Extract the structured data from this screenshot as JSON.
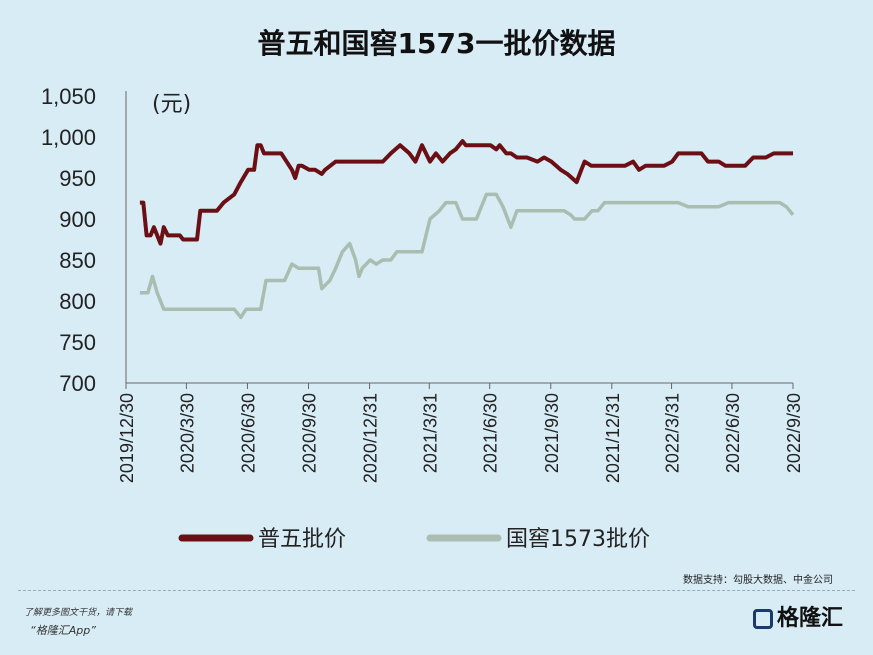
{
  "chart_data": {
    "type": "line",
    "title": "普五和国窖1573一批价数据",
    "unit_label": "(元)",
    "ylim": [
      700,
      1050
    ],
    "y_ticks": [
      700,
      750,
      800,
      850,
      900,
      950,
      1000,
      1050
    ],
    "y_tick_labels": [
      "700",
      "750",
      "800",
      "850",
      "900",
      "950",
      "1,000",
      "1,050"
    ],
    "x_range": [
      "2019-12-30",
      "2022-09-30"
    ],
    "x_ticks": [
      "2019/12/30",
      "2020/3/30",
      "2020/6/30",
      "2020/9/30",
      "2020/12/31",
      "2021/3/31",
      "2021/6/30",
      "2021/9/30",
      "2021/12/31",
      "2022/3/31",
      "2022/6/30",
      "2022/9/30"
    ],
    "series": [
      {
        "name": "普五批价",
        "color": "#6b0f14",
        "points": [
          [
            "2020-01-20",
            920
          ],
          [
            "2020-01-25",
            920
          ],
          [
            "2020-01-30",
            880
          ],
          [
            "2020-02-05",
            880
          ],
          [
            "2020-02-10",
            890
          ],
          [
            "2020-02-15",
            880
          ],
          [
            "2020-02-20",
            870
          ],
          [
            "2020-02-25",
            890
          ],
          [
            "2020-03-02",
            880
          ],
          [
            "2020-03-10",
            880
          ],
          [
            "2020-03-20",
            880
          ],
          [
            "2020-03-25",
            875
          ],
          [
            "2020-04-15",
            875
          ],
          [
            "2020-04-20",
            910
          ],
          [
            "2020-05-01",
            910
          ],
          [
            "2020-05-15",
            910
          ],
          [
            "2020-05-25",
            920
          ],
          [
            "2020-06-10",
            930
          ],
          [
            "2020-06-20",
            945
          ],
          [
            "2020-07-01",
            960
          ],
          [
            "2020-07-10",
            960
          ],
          [
            "2020-07-15",
            990
          ],
          [
            "2020-07-20",
            990
          ],
          [
            "2020-07-25",
            980
          ],
          [
            "2020-08-05",
            980
          ],
          [
            "2020-08-20",
            980
          ],
          [
            "2020-09-05",
            960
          ],
          [
            "2020-09-10",
            950
          ],
          [
            "2020-09-15",
            965
          ],
          [
            "2020-09-20",
            965
          ],
          [
            "2020-10-01",
            960
          ],
          [
            "2020-10-10",
            960
          ],
          [
            "2020-10-20",
            955
          ],
          [
            "2020-10-25",
            960
          ],
          [
            "2020-11-10",
            970
          ],
          [
            "2020-11-20",
            970
          ],
          [
            "2020-12-10",
            970
          ],
          [
            "2020-12-25",
            970
          ],
          [
            "2021-01-10",
            970
          ],
          [
            "2021-01-20",
            970
          ],
          [
            "2021-02-01",
            980
          ],
          [
            "2021-02-15",
            990
          ],
          [
            "2021-03-01",
            980
          ],
          [
            "2021-03-10",
            970
          ],
          [
            "2021-03-20",
            990
          ],
          [
            "2021-04-01",
            970
          ],
          [
            "2021-04-10",
            980
          ],
          [
            "2021-04-20",
            970
          ],
          [
            "2021-05-01",
            980
          ],
          [
            "2021-05-10",
            985
          ],
          [
            "2021-05-20",
            995
          ],
          [
            "2021-05-25",
            990
          ],
          [
            "2021-06-10",
            990
          ],
          [
            "2021-07-01",
            990
          ],
          [
            "2021-07-10",
            985
          ],
          [
            "2021-07-15",
            990
          ],
          [
            "2021-07-25",
            980
          ],
          [
            "2021-08-01",
            980
          ],
          [
            "2021-08-10",
            975
          ],
          [
            "2021-08-25",
            975
          ],
          [
            "2021-09-10",
            970
          ],
          [
            "2021-09-20",
            975
          ],
          [
            "2021-10-01",
            970
          ],
          [
            "2021-10-15",
            960
          ],
          [
            "2021-10-25",
            955
          ],
          [
            "2021-11-01",
            950
          ],
          [
            "2021-11-08",
            945
          ],
          [
            "2021-11-15",
            960
          ],
          [
            "2021-11-20",
            970
          ],
          [
            "2021-11-30",
            965
          ],
          [
            "2021-12-10",
            965
          ],
          [
            "2021-12-31",
            965
          ],
          [
            "2022-01-20",
            965
          ],
          [
            "2022-02-01",
            970
          ],
          [
            "2022-02-10",
            960
          ],
          [
            "2022-02-20",
            965
          ],
          [
            "2022-03-10",
            965
          ],
          [
            "2022-03-20",
            965
          ],
          [
            "2022-04-01",
            970
          ],
          [
            "2022-04-10",
            980
          ],
          [
            "2022-05-01",
            980
          ],
          [
            "2022-05-15",
            980
          ],
          [
            "2022-05-25",
            970
          ],
          [
            "2022-06-10",
            970
          ],
          [
            "2022-06-20",
            965
          ],
          [
            "2022-07-10",
            965
          ],
          [
            "2022-07-20",
            965
          ],
          [
            "2022-08-01",
            975
          ],
          [
            "2022-08-20",
            975
          ],
          [
            "2022-09-01",
            980
          ],
          [
            "2022-09-30",
            980
          ]
        ]
      },
      {
        "name": "国窖1573批价",
        "color": "#a9bdb0",
        "points": [
          [
            "2020-01-20",
            810
          ],
          [
            "2020-02-01",
            810
          ],
          [
            "2020-02-08",
            830
          ],
          [
            "2020-02-15",
            810
          ],
          [
            "2020-02-25",
            790
          ],
          [
            "2020-03-10",
            790
          ],
          [
            "2020-04-10",
            790
          ],
          [
            "2020-05-01",
            790
          ],
          [
            "2020-05-25",
            790
          ],
          [
            "2020-06-10",
            790
          ],
          [
            "2020-06-20",
            780
          ],
          [
            "2020-06-28",
            790
          ],
          [
            "2020-07-10",
            790
          ],
          [
            "2020-07-20",
            790
          ],
          [
            "2020-07-28",
            825
          ],
          [
            "2020-08-10",
            825
          ],
          [
            "2020-08-25",
            825
          ],
          [
            "2020-09-05",
            845
          ],
          [
            "2020-09-15",
            840
          ],
          [
            "2020-10-01",
            840
          ],
          [
            "2020-10-15",
            840
          ],
          [
            "2020-10-20",
            815
          ],
          [
            "2020-11-01",
            825
          ],
          [
            "2020-11-10",
            840
          ],
          [
            "2020-11-20",
            860
          ],
          [
            "2020-12-01",
            870
          ],
          [
            "2020-12-10",
            850
          ],
          [
            "2020-12-15",
            830
          ],
          [
            "2020-12-20",
            840
          ],
          [
            "2021-01-01",
            850
          ],
          [
            "2021-01-10",
            845
          ],
          [
            "2021-01-20",
            850
          ],
          [
            "2021-02-01",
            850
          ],
          [
            "2021-02-10",
            860
          ],
          [
            "2021-03-01",
            860
          ],
          [
            "2021-03-20",
            860
          ],
          [
            "2021-04-01",
            900
          ],
          [
            "2021-04-15",
            910
          ],
          [
            "2021-04-25",
            920
          ],
          [
            "2021-05-10",
            920
          ],
          [
            "2021-05-20",
            900
          ],
          [
            "2021-06-10",
            900
          ],
          [
            "2021-06-25",
            930
          ],
          [
            "2021-07-10",
            930
          ],
          [
            "2021-07-20",
            915
          ],
          [
            "2021-08-01",
            890
          ],
          [
            "2021-08-10",
            910
          ],
          [
            "2021-08-25",
            910
          ],
          [
            "2021-09-10",
            910
          ],
          [
            "2021-10-01",
            910
          ],
          [
            "2021-10-20",
            910
          ],
          [
            "2021-10-30",
            905
          ],
          [
            "2021-11-05",
            900
          ],
          [
            "2021-11-20",
            900
          ],
          [
            "2021-12-01",
            910
          ],
          [
            "2021-12-10",
            910
          ],
          [
            "2021-12-20",
            920
          ],
          [
            "2022-01-20",
            920
          ],
          [
            "2022-02-20",
            920
          ],
          [
            "2022-03-20",
            920
          ],
          [
            "2022-04-10",
            920
          ],
          [
            "2022-04-25",
            915
          ],
          [
            "2022-05-20",
            915
          ],
          [
            "2022-06-10",
            915
          ],
          [
            "2022-06-25",
            920
          ],
          [
            "2022-07-20",
            920
          ],
          [
            "2022-08-20",
            920
          ],
          [
            "2022-09-10",
            920
          ],
          [
            "2022-09-20",
            915
          ],
          [
            "2022-09-30",
            905
          ]
        ]
      }
    ],
    "grid": false,
    "legend_position": "bottom"
  },
  "source_text": "数据支持：勾股大数据、中金公司",
  "footer": {
    "note": "了解更多图文干货，请下载",
    "app": "“格隆汇App”",
    "brand": "格隆汇"
  }
}
